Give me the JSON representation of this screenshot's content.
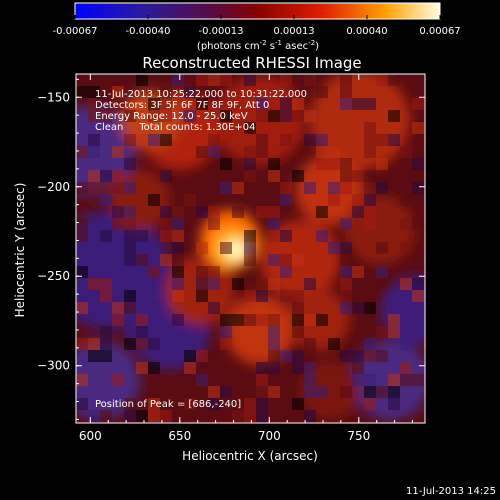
{
  "colorbar": {
    "ticks": [
      "-0.00067",
      "-0.00040",
      "-0.00013",
      "0.00013",
      "0.00040",
      "0.00067"
    ],
    "unit_main": "(photons cm",
    "unit_exp1": "-2",
    "unit_mid": " s",
    "unit_exp2": "-1",
    "unit_end": " asec",
    "unit_exp3": "-2",
    "unit_close": ")"
  },
  "chart_data": {
    "type": "heatmap",
    "title": "Reconstructed RHESSI Image",
    "xlabel": "Heliocentric X (arcsec)",
    "ylabel": "Heliocentric Y (arcsec)",
    "xlim": [
      592,
      787
    ],
    "ylim": [
      -332,
      -137
    ],
    "xticks": [
      600,
      650,
      700,
      750
    ],
    "yticks": [
      -150,
      -200,
      -250,
      -300
    ],
    "color_scale": {
      "min": -0.00067,
      "max": 0.00067
    },
    "annotations": [
      "11-Jul-2013 10:25:22.000 to 10:31:22.000",
      "Detectors: 3F 5F 6F 7F 8F 9F, Att 0",
      "Energy Range: 12.0 - 25.0 keV",
      "Clean     Total counts: 1.30E+04",
      "Position of Peak = [686,-240]"
    ],
    "peak": {
      "x": 686,
      "y": -240
    }
  },
  "footer": {
    "timestamp": "11-Jul-2013 14:25"
  }
}
